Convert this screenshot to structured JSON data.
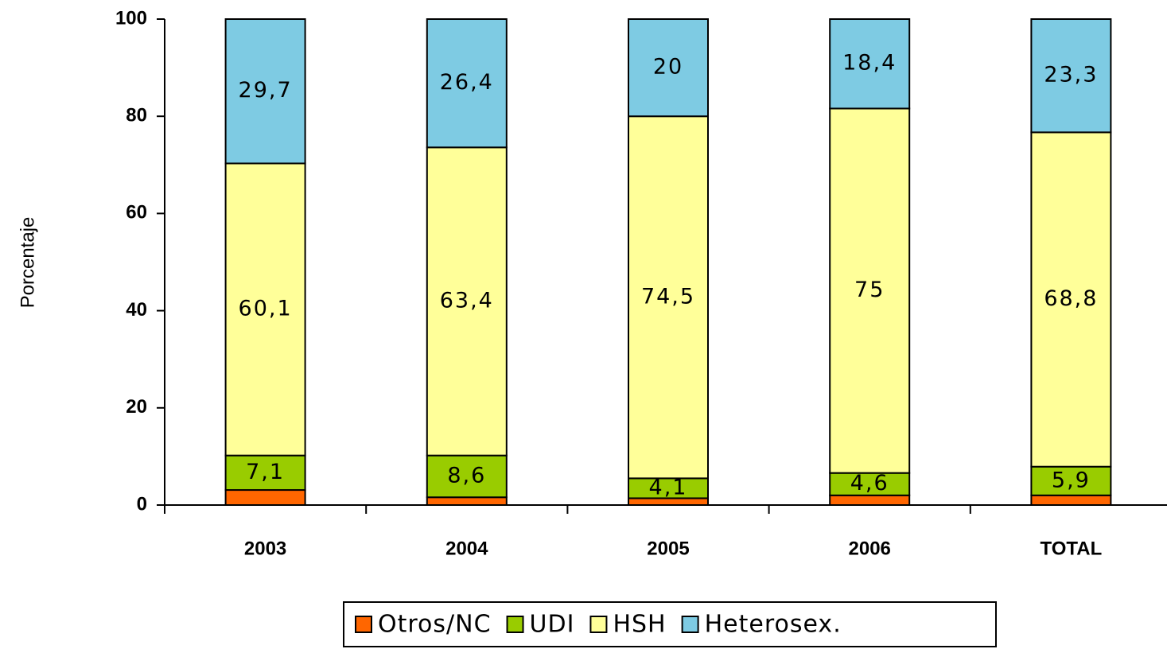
{
  "chart_data": {
    "type": "stacked_bar",
    "y_label": "Porcentaje",
    "categories": [
      "2003",
      "2004",
      "2005",
      "2006",
      "TOTAL"
    ],
    "series": [
      {
        "name": "Otros/NC",
        "color": "#ff6600",
        "values": [
          3.1,
          1.6,
          1.4,
          2.0,
          2.0
        ]
      },
      {
        "name": "UDI",
        "color": "#99cc00",
        "values": [
          7.1,
          8.6,
          4.1,
          4.6,
          5.9
        ],
        "value_labels": [
          "7,1",
          "8,6",
          "4,1",
          "4,6",
          "5,9"
        ]
      },
      {
        "name": "HSH",
        "color": "#ffff99",
        "values": [
          60.1,
          63.4,
          74.5,
          75,
          68.8
        ],
        "value_labels": [
          "60,1",
          "63,4",
          "74,5",
          "75",
          "68,8"
        ]
      },
      {
        "name": "Heterosex.",
        "color": "#7ecbe3",
        "values": [
          29.7,
          26.4,
          20,
          18.4,
          23.3
        ],
        "value_labels": [
          "29,7",
          "26,4",
          "20",
          "18,4",
          "23,3"
        ]
      }
    ],
    "ylim": [
      0,
      100
    ],
    "yticks": [
      0,
      20,
      40,
      60,
      80,
      100
    ]
  }
}
